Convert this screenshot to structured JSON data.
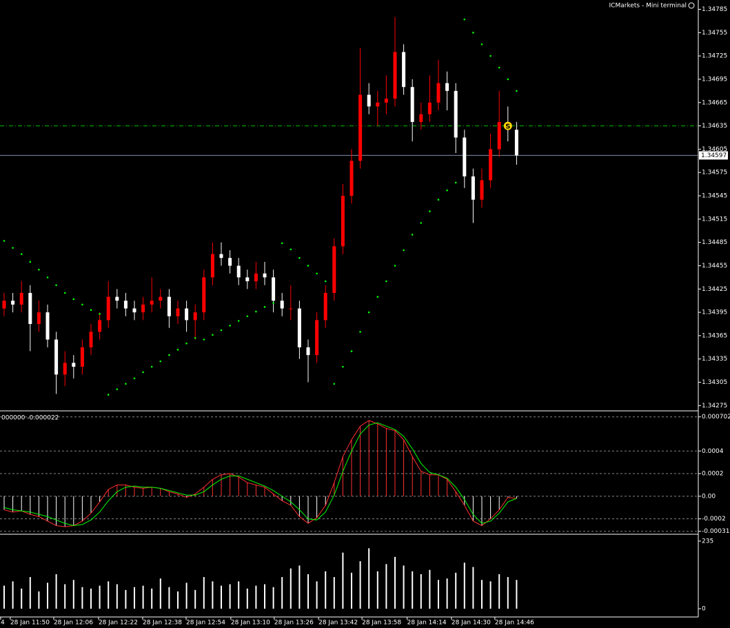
{
  "chart_data": [
    {
      "type": "candlestick",
      "header": "ICMarkets - Mini terminal",
      "open": [
        1.344,
        1.3441,
        1.34405,
        1.3442,
        1.3438,
        1.34395,
        1.3436,
        1.34315,
        1.3433,
        1.34325,
        1.3435,
        1.3437,
        1.34385,
        1.34415,
        1.3441,
        1.344,
        1.34395,
        1.34405,
        1.3441,
        1.34415,
        1.3439,
        1.344,
        1.34385,
        1.34395,
        1.3444,
        1.3447,
        1.34465,
        1.34455,
        1.3444,
        1.34435,
        1.34445,
        1.3444,
        1.3441,
        1.344,
        1.344,
        1.3435,
        1.3434,
        1.34385,
        1.3442,
        1.3448,
        1.34545,
        1.3459,
        1.34675,
        1.3466,
        1.34665,
        1.3467,
        1.3473,
        1.34685,
        1.3464,
        1.3465,
        1.34665,
        1.3469,
        1.3468,
        1.3462,
        1.3457,
        1.3454,
        1.34565,
        1.34605,
        1.3464,
        1.3463
      ],
      "high": [
        1.3442,
        1.3442,
        1.34435,
        1.3443,
        1.3441,
        1.34405,
        1.3437,
        1.34345,
        1.3434,
        1.3436,
        1.3438,
        1.34395,
        1.34435,
        1.34425,
        1.3442,
        1.3441,
        1.34415,
        1.3444,
        1.34425,
        1.34425,
        1.3441,
        1.3441,
        1.34405,
        1.3445,
        1.34485,
        1.34485,
        1.34475,
        1.34465,
        1.3445,
        1.3446,
        1.3446,
        1.3445,
        1.3442,
        1.3443,
        1.3441,
        1.3436,
        1.34395,
        1.3443,
        1.3449,
        1.3456,
        1.34605,
        1.34735,
        1.3469,
        1.3468,
        1.347,
        1.34775,
        1.3474,
        1.34695,
        1.34665,
        1.347,
        1.3472,
        1.34705,
        1.3469,
        1.3463,
        1.3458,
        1.3458,
        1.34625,
        1.3468,
        1.3466,
        1.3464
      ],
      "low": [
        1.3439,
        1.34395,
        1.34395,
        1.34345,
        1.3437,
        1.3435,
        1.3429,
        1.343,
        1.3431,
        1.34315,
        1.3434,
        1.3436,
        1.34375,
        1.344,
        1.3439,
        1.34385,
        1.34385,
        1.34395,
        1.344,
        1.34375,
        1.3438,
        1.3437,
        1.3436,
        1.34385,
        1.3443,
        1.34455,
        1.34445,
        1.3443,
        1.34425,
        1.34425,
        1.3443,
        1.34395,
        1.3439,
        1.34385,
        1.34335,
        1.34305,
        1.3433,
        1.34375,
        1.3441,
        1.3447,
        1.34535,
        1.3458,
        1.3465,
        1.34635,
        1.3465,
        1.3466,
        1.34675,
        1.34615,
        1.3463,
        1.3464,
        1.34655,
        1.34655,
        1.346,
        1.34555,
        1.3451,
        1.3453,
        1.34555,
        1.34595,
        1.34615,
        1.34585
      ],
      "close": [
        1.3441,
        1.34405,
        1.3442,
        1.3438,
        1.34395,
        1.3436,
        1.34315,
        1.3433,
        1.34325,
        1.3435,
        1.3437,
        1.34385,
        1.34415,
        1.3441,
        1.344,
        1.34395,
        1.34405,
        1.3441,
        1.34415,
        1.3439,
        1.344,
        1.34385,
        1.34395,
        1.3444,
        1.3447,
        1.34465,
        1.34455,
        1.3444,
        1.34435,
        1.34445,
        1.3444,
        1.3441,
        1.344,
        1.344,
        1.3435,
        1.3434,
        1.34385,
        1.3442,
        1.3448,
        1.34545,
        1.3459,
        1.34675,
        1.3466,
        1.34665,
        1.3467,
        1.3473,
        1.34685,
        1.3464,
        1.3465,
        1.34665,
        1.3469,
        1.3468,
        1.3462,
        1.3457,
        1.3454,
        1.34565,
        1.34605,
        1.3464,
        1.3463,
        1.34597
      ],
      "sar": [
        1.34487,
        1.34478,
        1.3447,
        1.3446,
        1.3445,
        1.3444,
        1.3443,
        1.3442,
        1.34412,
        1.34405,
        1.34398,
        1.34393,
        1.34289,
        1.34296,
        1.34303,
        1.3431,
        1.34318,
        1.34325,
        1.34332,
        1.3434,
        1.34347,
        1.34355,
        1.34362,
        1.3436,
        1.34366,
        1.34372,
        1.34378,
        1.34384,
        1.3439,
        1.34396,
        1.34402,
        1.34407,
        1.34484,
        1.34476,
        1.34465,
        1.34455,
        1.34445,
        1.34435,
        1.34303,
        1.34325,
        1.34345,
        1.3437,
        1.34395,
        1.34415,
        1.34435,
        1.34455,
        1.34475,
        1.34495,
        1.3451,
        1.34525,
        1.3454,
        1.34552,
        1.34562,
        1.34772,
        1.34755,
        1.3474,
        1.34725,
        1.3471,
        1.34695,
        1.3468
      ],
      "up_color": "#ff0000",
      "down_color": "#ffffff",
      "sar_color": "#00ff00",
      "level": 1.34635,
      "level_color": "#00c000",
      "current_price": 1.34597,
      "marker": {
        "label": "S",
        "x": 58,
        "y": 1.34635,
        "color": "#ffd700"
      },
      "ylim": [
        1.3427,
        1.34797
      ],
      "yticks": [
        1.34785,
        1.34755,
        1.34725,
        1.34695,
        1.34665,
        1.34635,
        1.34605,
        1.34575,
        1.34545,
        1.34515,
        1.34485,
        1.34455,
        1.34425,
        1.34395,
        1.34365,
        1.34335,
        1.34305,
        1.34275
      ],
      "xlim": [
        -0.5,
        80
      ],
      "xticks": [
        {
          "value": -0.4,
          "label": "4"
        },
        {
          "value": 0.71,
          "label": "28 Jan 11:50"
        },
        {
          "value": 5.71,
          "label": "28 Jan 12:06"
        },
        {
          "value": 10.87,
          "label": "28 Jan 12:22"
        },
        {
          "value": 15.95,
          "label": "28 Jan 12:38"
        },
        {
          "value": 20.95,
          "label": "28 Jan 12:54"
        },
        {
          "value": 26.1,
          "label": "28 Jan 13:10"
        },
        {
          "value": 31.1,
          "label": "28 Jan 13:26"
        },
        {
          "value": 36.2,
          "label": "28 Jan 13:42"
        },
        {
          "value": 41.2,
          "label": "28 Jan 13:58"
        },
        {
          "value": 46.4,
          "label": "28 Jan 14:14"
        },
        {
          "value": 51.5,
          "label": "28 Jan 14:30"
        },
        {
          "value": 56.5,
          "label": "28 Jan 14:46"
        }
      ]
    },
    {
      "type": "macd",
      "label": "000000 -0.000022",
      "histogram": [
        -0.00012,
        -0.00014,
        -0.00013,
        -0.00016,
        -0.00018,
        -0.00022,
        -0.00026,
        -0.00027,
        -0.00026,
        -0.00022,
        -0.00015,
        -5e-05,
        6e-05,
        0.0001,
        0.0001,
        8e-05,
        7e-05,
        8e-05,
        7e-05,
        4e-05,
        2e-05,
        -1e-05,
        2e-05,
        8e-05,
        0.00015,
        0.00019,
        0.0002,
        0.00017,
        0.00012,
        0.0001,
        8e-05,
        2e-05,
        -4e-05,
        -8e-05,
        -0.00018,
        -0.00024,
        -0.00019,
        -8e-05,
        0.00012,
        0.00035,
        0.0005,
        0.00062,
        0.00067,
        0.00064,
        0.0006,
        0.00058,
        0.0005,
        0.00035,
        0.00022,
        0.00019,
        0.00019,
        0.00015,
        4e-05,
        -8e-05,
        -0.00022,
        -0.00026,
        -0.0002,
        -0.00012,
        -1e-05,
        -2e-05
      ],
      "signal": [
        -0.0001,
        -0.00012,
        -0.00013,
        -0.00014,
        -0.00016,
        -0.00018,
        -0.00021,
        -0.00024,
        -0.00026,
        -0.00025,
        -0.00021,
        -0.00014,
        -4e-05,
        4e-05,
        8e-05,
        9e-05,
        8e-05,
        8e-05,
        7e-05,
        5e-05,
        3e-05,
        1e-05,
        1e-05,
        4e-05,
        0.0001,
        0.00015,
        0.00018,
        0.00018,
        0.00015,
        0.00012,
        9e-05,
        5e-05,
        0,
        -5e-05,
        -0.00012,
        -0.0002,
        -0.00021,
        -0.00014,
        1e-05,
        0.00022,
        0.0004,
        0.00055,
        0.00063,
        0.00065,
        0.00062,
        0.00059,
        0.00053,
        0.00042,
        0.00029,
        0.00021,
        0.00019,
        0.00016,
        8e-05,
        -3e-05,
        -0.00016,
        -0.00024,
        -0.00022,
        -0.00015,
        -5e-05,
        -2e-05
      ],
      "positive_color": "#ff3030",
      "negative_color": "#ffffff",
      "signal_color": "#00ff00",
      "ylim": [
        -0.000324,
        0.000743
      ],
      "yticks": [
        0.000702,
        0.0004,
        0.0002,
        {
          "value": 0,
          "label": "0.00"
        },
        -0.0002,
        -0.00031
      ]
    },
    {
      "type": "bar",
      "values": [
        80,
        95,
        70,
        110,
        60,
        90,
        120,
        85,
        100,
        75,
        70,
        80,
        95,
        85,
        65,
        75,
        80,
        70,
        105,
        75,
        60,
        90,
        65,
        110,
        95,
        80,
        85,
        95,
        70,
        80,
        85,
        75,
        110,
        140,
        150,
        120,
        95,
        130,
        110,
        195,
        125,
        165,
        210,
        130,
        155,
        180,
        150,
        130,
        120,
        135,
        100,
        105,
        125,
        160,
        145,
        100,
        95,
        120,
        110,
        100
      ],
      "color": "#ffffff",
      "ylim": [
        -24,
        254
      ],
      "yticks": [
        235,
        0
      ]
    }
  ]
}
